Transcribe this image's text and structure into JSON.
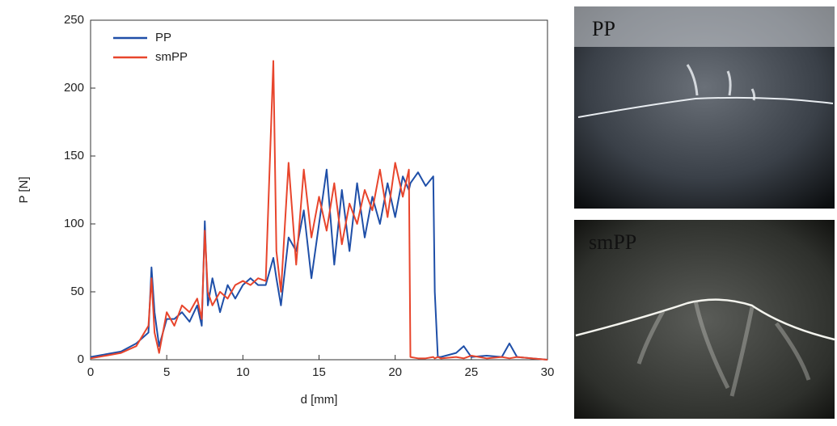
{
  "chart_data": {
    "type": "line",
    "x_label": "d [mm]",
    "y_label": "P [N]",
    "x": [
      0,
      1,
      2,
      3,
      3.8,
      4,
      4.2,
      4.5,
      5,
      5.5,
      6,
      6.5,
      7,
      7.3,
      7.5,
      7.7,
      8,
      8.5,
      9,
      9.5,
      10,
      10.5,
      11,
      11.5,
      12,
      12.2,
      12.5,
      13,
      13.5,
      14,
      14.5,
      15,
      15.5,
      16,
      16.5,
      17,
      17.5,
      18,
      18.5,
      19,
      19.5,
      20,
      20.5,
      20.9,
      21,
      21.5,
      22,
      22.5,
      22.6,
      22.8,
      23,
      24,
      24.5,
      25,
      26,
      27,
      27.5,
      28,
      29,
      30
    ],
    "series": [
      {
        "name": "PP",
        "color": "#1f4fa8",
        "values": [
          2,
          4,
          6,
          12,
          20,
          68,
          35,
          10,
          30,
          30,
          35,
          28,
          40,
          25,
          102,
          40,
          60,
          35,
          55,
          45,
          55,
          60,
          55,
          55,
          75,
          60,
          40,
          90,
          80,
          110,
          60,
          100,
          140,
          70,
          125,
          80,
          130,
          90,
          120,
          100,
          130,
          105,
          135,
          125,
          130,
          138,
          128,
          135,
          50,
          2,
          2,
          5,
          10,
          2,
          3,
          2,
          12,
          2,
          1,
          0
        ]
      },
      {
        "name": "smPP",
        "color": "#e8452c",
        "values": [
          1,
          3,
          5,
          10,
          25,
          60,
          20,
          5,
          35,
          25,
          40,
          35,
          45,
          30,
          95,
          50,
          40,
          50,
          45,
          55,
          58,
          55,
          60,
          58,
          220,
          80,
          50,
          145,
          70,
          140,
          90,
          120,
          95,
          130,
          85,
          115,
          100,
          125,
          110,
          140,
          105,
          145,
          120,
          140,
          2,
          1,
          1,
          2,
          1,
          2,
          1,
          2,
          1,
          3,
          1,
          2,
          1,
          2,
          1,
          0
        ]
      }
    ],
    "xlim": [
      0,
      30
    ],
    "xticks": [
      0,
      5,
      10,
      15,
      20,
      25,
      30
    ],
    "ylim": [
      0,
      250
    ],
    "yticks": [
      0,
      50,
      100,
      150,
      200,
      250
    ],
    "legend": "upper-left"
  },
  "photos": [
    {
      "label": "PP"
    },
    {
      "label": "smPP"
    }
  ]
}
